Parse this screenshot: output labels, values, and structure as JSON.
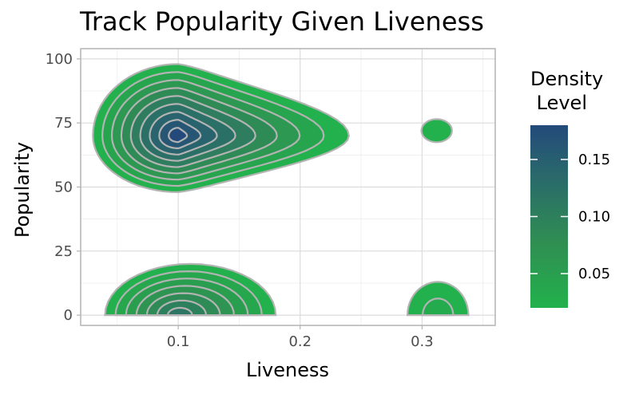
{
  "chart_data": {
    "type": "density_contour",
    "title": "Track Popularity Given Liveness",
    "xlabel": "Liveness",
    "ylabel": "Popularity",
    "xlim": [
      0.02,
      0.36
    ],
    "ylim": [
      -4,
      104
    ],
    "x_ticks": [
      0.1,
      0.2,
      0.3
    ],
    "x_tick_labels": [
      "0.1",
      "0.2",
      "0.3"
    ],
    "y_ticks": [
      0,
      25,
      50,
      75,
      100
    ],
    "y_tick_labels": [
      "0",
      "25",
      "50",
      "75",
      "100"
    ],
    "grid": true,
    "legend": {
      "title": "Density\n Level",
      "position": "right",
      "range": [
        0.02,
        0.18
      ],
      "ticks": [
        0.05,
        0.1,
        0.15
      ],
      "tick_labels": [
        "0.05",
        "0.10",
        "0.15"
      ],
      "colors": [
        "#22b14c",
        "#2f8f52",
        "#2a6b6a",
        "#234a7a"
      ]
    },
    "clusters": [
      {
        "name": "high-popularity-low-liveness",
        "center": [
          0.1,
          70
        ],
        "extent_x": [
          0.03,
          0.24
        ],
        "extent_y": [
          48,
          98
        ],
        "peak_density": 0.18,
        "levels": 9
      },
      {
        "name": "low-popularity-low-liveness",
        "center": [
          0.1,
          2
        ],
        "extent_x": [
          0.05,
          0.19
        ],
        "extent_y": [
          0,
          20
        ],
        "peak_density": 0.11,
        "levels": 7
      },
      {
        "name": "high-popularity-high-liveness",
        "center": [
          0.312,
          72
        ],
        "extent_x": [
          0.3,
          0.325
        ],
        "extent_y": [
          67,
          76
        ],
        "peak_density": 0.02,
        "levels": 1
      },
      {
        "name": "low-popularity-high-liveness",
        "center": [
          0.313,
          2
        ],
        "extent_x": [
          0.29,
          0.34
        ],
        "extent_y": [
          0,
          13
        ],
        "peak_density": 0.03,
        "levels": 2
      }
    ]
  }
}
